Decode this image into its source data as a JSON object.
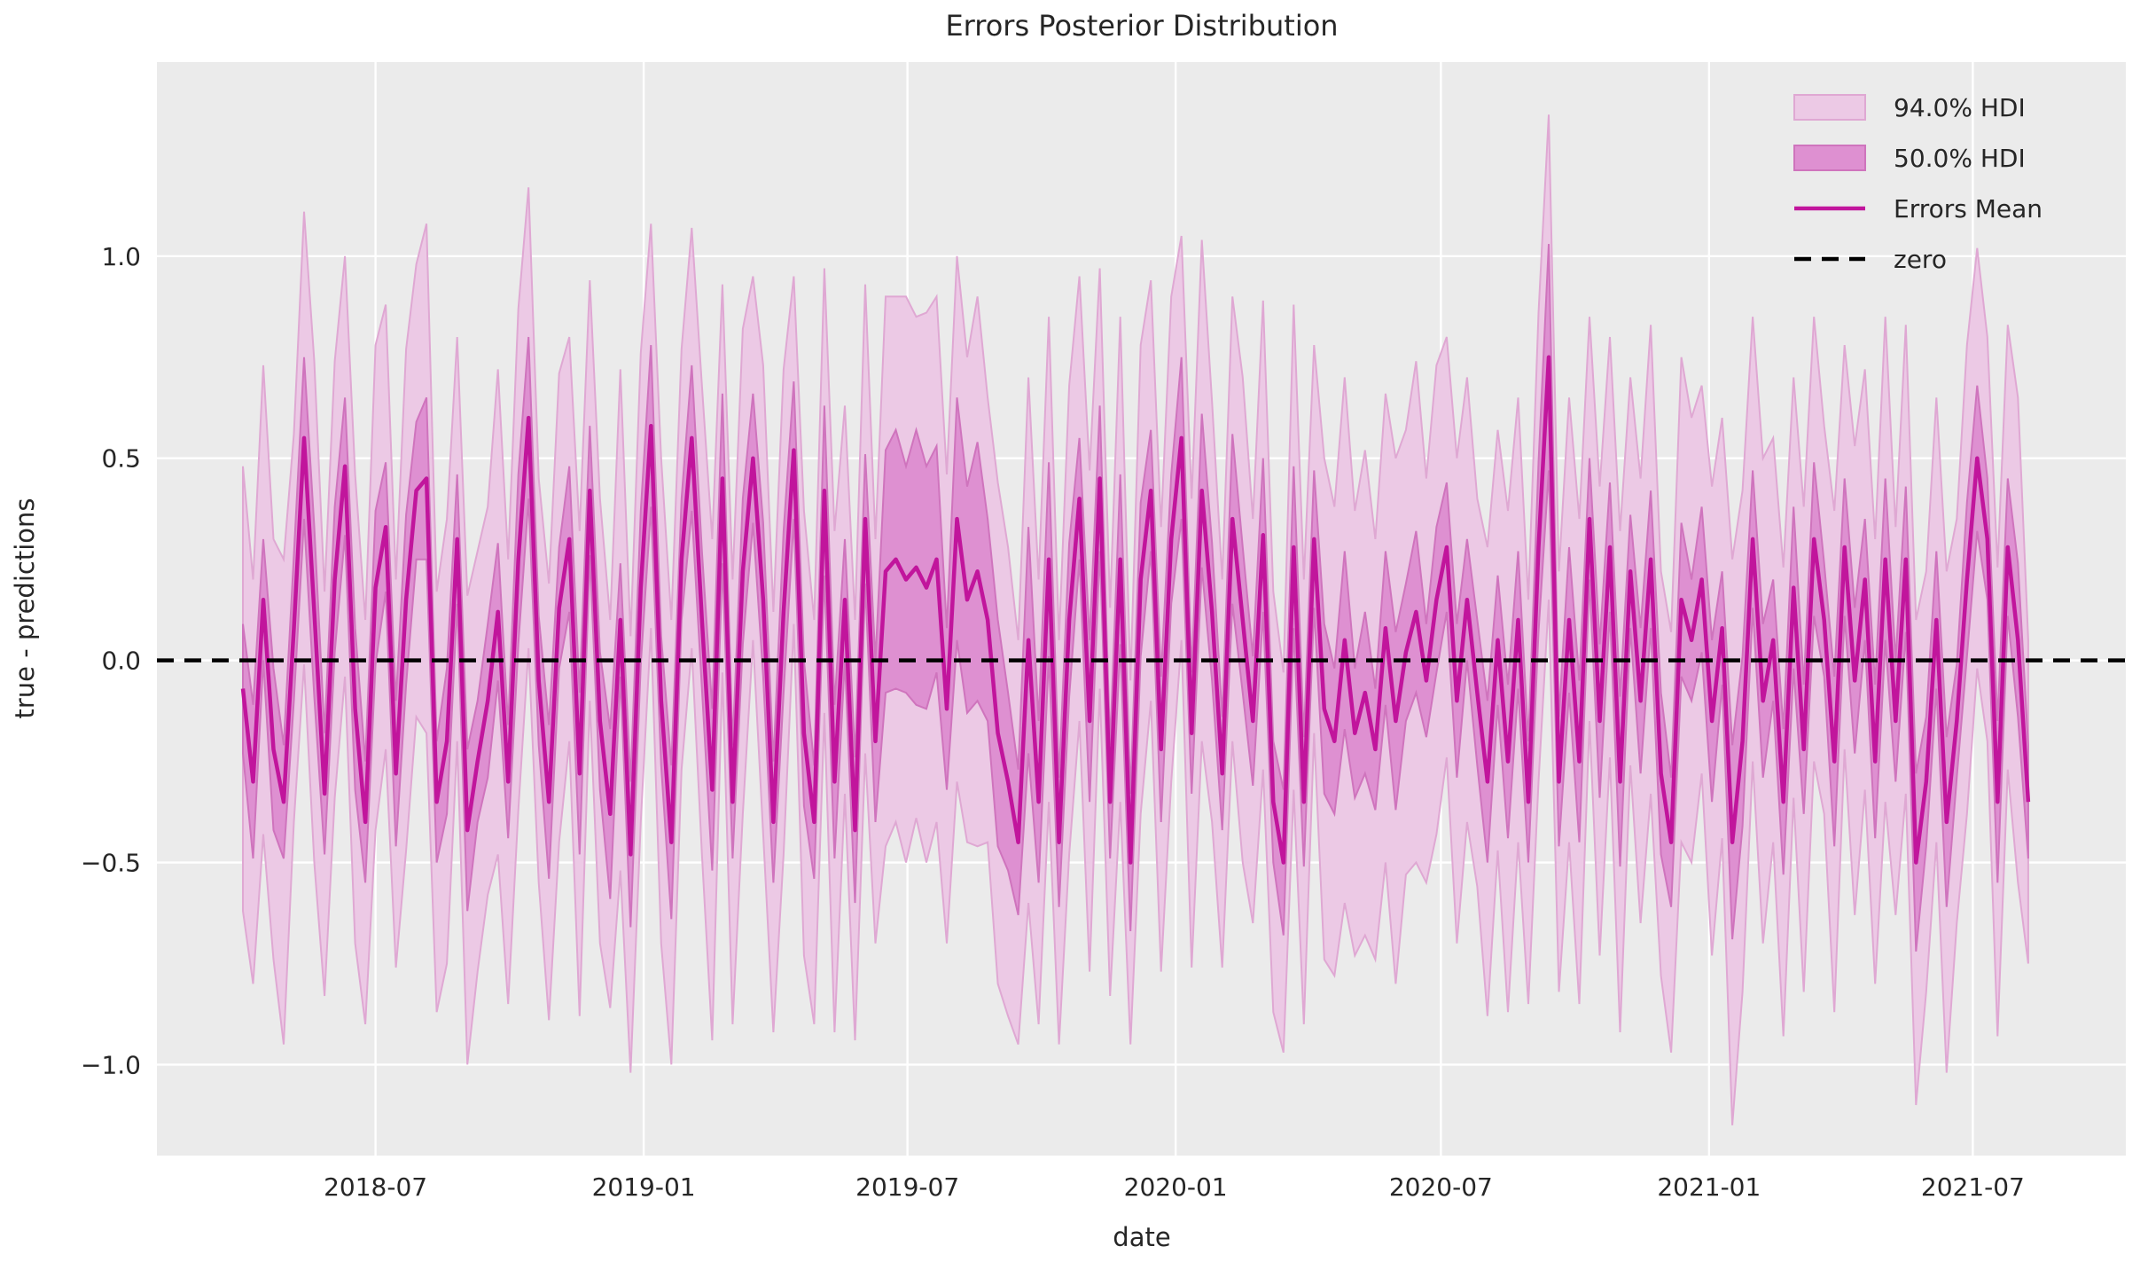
{
  "chart_data": {
    "type": "line",
    "title": "Errors Posterior Distribution",
    "xlabel": "date",
    "ylabel": "true - predictions",
    "background_color": "#ebebeb",
    "grid_color": "#ffffff",
    "text_color": "#262626",
    "ylim": [
      -1.225,
      1.48
    ],
    "yticks": {
      "values": [
        1.0,
        0.5,
        0.0,
        -0.5,
        -1.0
      ],
      "labels": [
        "1.0",
        "0.5",
        "0.0",
        "−0.5",
        "−1.0"
      ]
    },
    "xticks": {
      "dates": [
        "2018-07-01",
        "2019-01-01",
        "2019-07-01",
        "2020-01-01",
        "2020-07-01",
        "2021-01-01",
        "2021-07-01"
      ],
      "labels": [
        "2018-07",
        "2019-01",
        "2019-07",
        "2020-01",
        "2020-07",
        "2021-01",
        "2021-07"
      ]
    },
    "x_axis_range": [
      "2018-02-01",
      "2021-10-14"
    ],
    "x_start": "2018-04-01",
    "x_step_days": 7,
    "n_points": 176,
    "legend": [
      {
        "label": "94.0% HDI",
        "type": "patch",
        "fill": "#ecc9e5",
        "edge": "#dfa8d3"
      },
      {
        "label": "50.0% HDI",
        "type": "patch",
        "fill": "#de90d1",
        "edge": "#cf74bd"
      },
      {
        "label": "Errors Mean",
        "type": "line",
        "color": "#c1159c"
      },
      {
        "label": "zero",
        "type": "dashed-line",
        "color": "#000000"
      }
    ],
    "reference_line": {
      "name": "zero",
      "value": 0.0,
      "color": "#000000",
      "style": "dashed"
    },
    "bands": [
      {
        "name": "94.0% HDI",
        "fill": "#ecc9e5",
        "edge": "#dfa8d3",
        "half_widths": [
          0.55,
          0.5,
          0.58,
          0.52,
          0.6,
          0.48,
          0.56,
          0.62,
          0.5,
          0.54,
          0.52,
          0.58,
          0.5,
          0.6,
          0.55,
          0.48,
          0.62,
          0.56,
          0.63,
          0.52,
          0.55,
          0.5,
          0.58,
          0.52,
          0.48,
          0.6,
          0.55,
          0.62,
          0.57,
          0.5,
          0.54,
          0.58,
          0.5,
          0.6,
          0.52,
          0.55,
          0.48,
          0.62,
          0.54,
          0.58,
          0.5,
          0.6,
          0.55,
          0.52,
          0.52,
          0.58,
          0.62,
          0.48,
          0.55,
          0.6,
          0.45,
          0.58,
          0.52,
          0.6,
          0.43,
          0.55,
          0.5,
          0.55,
          0.62,
          0.48,
          0.52,
          0.58,
          0.5,
          0.68,
          0.65,
          0.7,
          0.62,
          0.68,
          0.65,
          0.58,
          0.65,
          0.6,
          0.68,
          0.55,
          0.62,
          0.58,
          0.5,
          0.65,
          0.55,
          0.6,
          0.5,
          0.58,
          0.55,
          0.62,
          0.52,
          0.48,
          0.6,
          0.45,
          0.58,
          0.52,
          0.55,
          0.6,
          0.5,
          0.58,
          0.62,
          0.52,
          0.48,
          0.55,
          0.6,
          0.5,
          0.58,
          0.52,
          0.47,
          0.6,
          0.55,
          0.48,
          0.62,
          0.58,
          0.65,
          0.55,
          0.6,
          0.52,
          0.58,
          0.65,
          0.55,
          0.62,
          0.5,
          0.58,
          0.52,
          0.6,
          0.55,
          0.48,
          0.58,
          0.52,
          0.62,
          0.55,
          0.5,
          0.58,
          0.6,
          0.52,
          0.55,
          0.6,
          0.5,
          0.58,
          0.52,
          0.62,
          0.48,
          0.55,
          0.58,
          0.5,
          0.52,
          0.6,
          0.55,
          0.48,
          0.58,
          0.52,
          0.7,
          0.62,
          0.55,
          0.6,
          0.5,
          0.58,
          0.52,
          0.6,
          0.55,
          0.48,
          0.62,
          0.5,
          0.58,
          0.52,
          0.55,
          0.6,
          0.48,
          0.58,
          0.6,
          0.52,
          0.55,
          0.62,
          0.5,
          0.58,
          0.52,
          0.5,
          0.58,
          0.55,
          0.6,
          0.4
        ]
      },
      {
        "name": "50.0% HDI",
        "fill": "#de90d1",
        "edge": "#cf74bd",
        "half_widths": [
          0.16,
          0.19,
          0.15,
          0.2,
          0.14,
          0.18,
          0.2,
          0.21,
          0.15,
          0.18,
          0.17,
          0.2,
          0.15,
          0.19,
          0.16,
          0.18,
          0.21,
          0.17,
          0.2,
          0.15,
          0.18,
          0.16,
          0.2,
          0.15,
          0.19,
          0.17,
          0.14,
          0.21,
          0.2,
          0.16,
          0.19,
          0.15,
          0.18,
          0.2,
          0.16,
          0.17,
          0.21,
          0.14,
          0.18,
          0.19,
          0.2,
          0.16,
          0.19,
          0.15,
          0.18,
          0.17,
          0.2,
          0.21,
          0.14,
          0.18,
          0.16,
          0.19,
          0.15,
          0.2,
          0.17,
          0.18,
          0.14,
          0.21,
          0.19,
          0.15,
          0.18,
          0.16,
          0.2,
          0.3,
          0.32,
          0.28,
          0.34,
          0.3,
          0.28,
          0.2,
          0.3,
          0.28,
          0.32,
          0.25,
          0.28,
          0.22,
          0.18,
          0.28,
          0.2,
          0.24,
          0.16,
          0.19,
          0.15,
          0.2,
          0.18,
          0.14,
          0.21,
          0.17,
          0.19,
          0.15,
          0.18,
          0.16,
          0.2,
          0.15,
          0.19,
          0.17,
          0.14,
          0.21,
          0.18,
          0.16,
          0.19,
          0.15,
          0.18,
          0.2,
          0.16,
          0.17,
          0.21,
          0.18,
          0.22,
          0.16,
          0.2,
          0.15,
          0.19,
          0.22,
          0.17,
          0.2,
          0.14,
          0.18,
          0.16,
          0.19,
          0.15,
          0.18,
          0.2,
          0.16,
          0.19,
          0.17,
          0.15,
          0.21,
          0.28,
          0.16,
          0.18,
          0.2,
          0.15,
          0.19,
          0.16,
          0.21,
          0.14,
          0.18,
          0.17,
          0.2,
          0.16,
          0.19,
          0.15,
          0.18,
          0.2,
          0.14,
          0.24,
          0.21,
          0.17,
          0.19,
          0.15,
          0.18,
          0.2,
          0.16,
          0.19,
          0.14,
          0.21,
          0.17,
          0.18,
          0.15,
          0.19,
          0.2,
          0.15,
          0.18,
          0.22,
          0.16,
          0.17,
          0.21,
          0.14,
          0.19,
          0.18,
          0.15,
          0.2,
          0.17,
          0.19,
          0.14
        ]
      }
    ],
    "series": [
      {
        "name": "Errors Mean",
        "color": "#c1159c",
        "values": [
          -0.07,
          -0.3,
          0.15,
          -0.22,
          -0.35,
          0.08,
          0.55,
          0.12,
          -0.33,
          0.2,
          0.48,
          -0.12,
          -0.4,
          0.18,
          0.33,
          -0.28,
          0.15,
          0.42,
          0.45,
          -0.35,
          -0.2,
          0.3,
          -0.42,
          -0.25,
          -0.1,
          0.12,
          -0.3,
          0.25,
          0.6,
          -0.05,
          -0.35,
          0.13,
          0.3,
          -0.28,
          0.42,
          -0.15,
          -0.38,
          0.1,
          -0.48,
          0.18,
          0.58,
          -0.1,
          -0.45,
          0.25,
          0.55,
          0.1,
          -0.32,
          0.45,
          -0.35,
          0.22,
          0.5,
          0.15,
          -0.4,
          0.12,
          0.52,
          -0.18,
          -0.4,
          0.42,
          -0.3,
          0.15,
          -0.42,
          0.35,
          -0.2,
          0.22,
          0.25,
          0.2,
          0.23,
          0.18,
          0.25,
          -0.12,
          0.35,
          0.15,
          0.22,
          0.1,
          -0.18,
          -0.3,
          -0.45,
          0.05,
          -0.35,
          0.25,
          -0.45,
          0.1,
          0.4,
          -0.15,
          0.45,
          -0.35,
          0.25,
          -0.5,
          0.2,
          0.42,
          -0.22,
          0.3,
          0.55,
          -0.18,
          0.42,
          0.12,
          -0.28,
          0.35,
          0.1,
          -0.15,
          0.31,
          -0.35,
          -0.5,
          0.28,
          -0.35,
          0.3,
          -0.12,
          -0.2,
          0.05,
          -0.18,
          -0.08,
          -0.22,
          0.08,
          -0.15,
          0.02,
          0.12,
          -0.05,
          0.15,
          0.28,
          -0.1,
          0.15,
          -0.08,
          -0.3,
          0.05,
          -0.25,
          0.1,
          -0.35,
          0.28,
          0.75,
          -0.3,
          0.1,
          -0.25,
          0.35,
          -0.15,
          0.28,
          -0.3,
          0.22,
          -0.1,
          0.25,
          -0.28,
          -0.45,
          0.15,
          0.05,
          0.2,
          -0.15,
          0.08,
          -0.45,
          -0.2,
          0.3,
          -0.1,
          0.05,
          -0.35,
          0.18,
          -0.22,
          0.3,
          0.1,
          -0.25,
          0.28,
          -0.05,
          0.2,
          -0.25,
          0.25,
          -0.15,
          0.25,
          -0.5,
          -0.3,
          0.1,
          -0.4,
          -0.15,
          0.2,
          0.5,
          0.3,
          -0.35,
          0.28,
          0.05,
          -0.35
        ]
      }
    ]
  },
  "labels": {
    "title": "Errors Posterior Distribution",
    "xlabel": "date",
    "ylabel": "true - predictions",
    "legend_94": "94.0% HDI",
    "legend_50": "50.0% HDI",
    "legend_mean": "Errors Mean",
    "legend_zero": "zero"
  }
}
